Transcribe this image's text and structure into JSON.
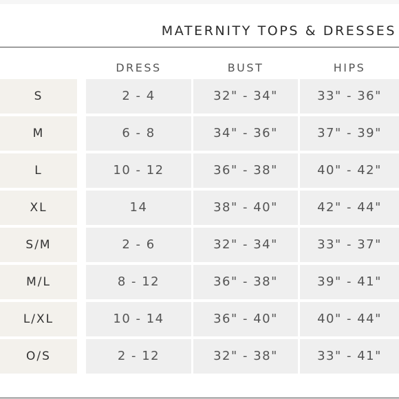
{
  "title": "MATERNITY TOPS & DRESSES",
  "headers": {
    "dress": "DRESS",
    "bust": "BUST",
    "hips": "HIPS"
  },
  "rows": [
    {
      "size": "S",
      "dress": "2 - 4",
      "bust": "32\" - 34\"",
      "hips": "33\" - 36\""
    },
    {
      "size": "M",
      "dress": "6 - 8",
      "bust": "34\" - 36\"",
      "hips": "37\" - 39\""
    },
    {
      "size": "L",
      "dress": "10 - 12",
      "bust": "36\" - 38\"",
      "hips": "40\" - 42\""
    },
    {
      "size": "XL",
      "dress": "14",
      "bust": "38\" - 40\"",
      "hips": "42\" - 44\""
    },
    {
      "size": "S/M",
      "dress": "2 - 6",
      "bust": "32\" - 34\"",
      "hips": "33\" - 37\""
    },
    {
      "size": "M/L",
      "dress": "8 - 12",
      "bust": "36\" - 38\"",
      "hips": "39\" - 41\""
    },
    {
      "size": "L/XL",
      "dress": "10 - 14",
      "bust": "36\" - 40\"",
      "hips": "40\" - 44\""
    },
    {
      "size": "O/S",
      "dress": "2 - 12",
      "bust": "32\" - 38\"",
      "hips": "33\" - 41\""
    }
  ]
}
